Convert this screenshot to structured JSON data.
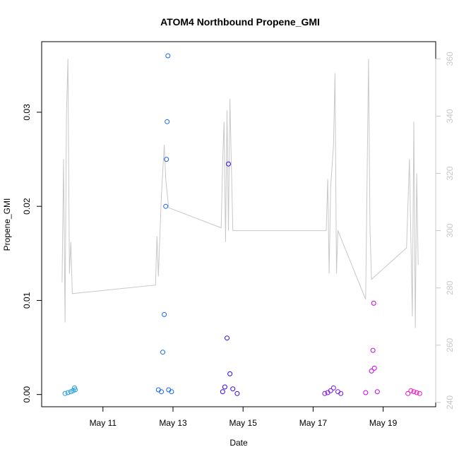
{
  "chart_data": {
    "type": "scatter",
    "title": "ATOM4 Northbound Propene_GMI",
    "xlabel": "Date",
    "ylabel": "Propene_GMI",
    "x_ticks": [
      "May 11",
      "May 13",
      "May 15",
      "May 17",
      "May 19"
    ],
    "y_ticks": [
      "0.00",
      "0.01",
      "0.02",
      "0.03"
    ],
    "y2_ticks": [
      "240",
      "260",
      "280",
      "300",
      "320",
      "340",
      "360"
    ],
    "xlim": [
      "2018-05-09 06:00",
      "2018-05-20 12:00"
    ],
    "ylim": [
      -0.0013,
      0.0375
    ],
    "y2lim": [
      238.5,
      366
    ],
    "y2_color": "#c8c8c8",
    "series": [
      {
        "color": "#1E9BE0",
        "points": [
          [
            "2018-05-09 22:00",
            0.0001
          ],
          [
            "2018-05-10 00:00",
            0.0002
          ],
          [
            "2018-05-10 02:00",
            0.0003
          ],
          [
            "2018-05-10 03:30",
            0.0004
          ],
          [
            "2018-05-10 04:30",
            0.0007
          ],
          [
            "2018-05-10 05:00",
            0.0005
          ]
        ]
      },
      {
        "color": "#1866EE",
        "points": [
          [
            "2018-05-12 14:00",
            0.0005
          ],
          [
            "2018-05-12 16:00",
            0.0003
          ],
          [
            "2018-05-12 17:00",
            0.0045
          ],
          [
            "2018-05-12 18:00",
            0.0085
          ],
          [
            "2018-05-12 19:00",
            0.02
          ],
          [
            "2018-05-12 19:30",
            0.025
          ],
          [
            "2018-05-12 20:00",
            0.029
          ],
          [
            "2018-05-12 20:30",
            0.036
          ],
          [
            "2018-05-12 21:00",
            0.0005
          ],
          [
            "2018-05-12 23:00",
            0.0003
          ]
        ]
      },
      {
        "color": "#3300EE",
        "points": [
          [
            "2018-05-14 10:00",
            0.0003
          ],
          [
            "2018-05-14 11:30",
            0.0008
          ],
          [
            "2018-05-14 13:00",
            0.006
          ],
          [
            "2018-05-14 14:00",
            0.0245
          ],
          [
            "2018-05-14 15:00",
            0.0022
          ],
          [
            "2018-05-14 17:00",
            0.0006
          ],
          [
            "2018-05-14 20:00",
            0.0001
          ]
        ]
      },
      {
        "color": "#7A10E8",
        "points": [
          [
            "2018-05-17 08:00",
            0.0001
          ],
          [
            "2018-05-17 10:00",
            0.0002
          ],
          [
            "2018-05-17 12:00",
            0.0004
          ],
          [
            "2018-05-17 14:00",
            0.0007
          ],
          [
            "2018-05-17 17:00",
            0.0003
          ],
          [
            "2018-05-17 19:00",
            0.0001
          ]
        ]
      },
      {
        "color": "#CC00EE",
        "points": [
          [
            "2018-05-18 12:00",
            0.0002
          ],
          [
            "2018-05-18 16:00",
            0.0025
          ],
          [
            "2018-05-18 17:00",
            0.0047
          ],
          [
            "2018-05-18 17:30",
            0.0097
          ],
          [
            "2018-05-18 18:00",
            0.0028
          ],
          [
            "2018-05-18 20:00",
            0.0003
          ]
        ]
      },
      {
        "color": "#EE10C0",
        "points": [
          [
            "2018-05-19 17:00",
            0.0001
          ],
          [
            "2018-05-19 19:00",
            0.0004
          ],
          [
            "2018-05-19 21:00",
            0.0003
          ],
          [
            "2018-05-19 23:00",
            0.0002
          ],
          [
            "2018-05-20 01:00",
            0.0001
          ]
        ]
      }
    ],
    "line2": {
      "color": "#c8c8c8",
      "points": [
        [
          "2018-05-09 20:00",
          282
        ],
        [
          "2018-05-09 21:00",
          325
        ],
        [
          "2018-05-09 22:00",
          268
        ],
        [
          "2018-05-09 23:00",
          340
        ],
        [
          "2018-05-10 00:00",
          360
        ],
        [
          "2018-05-10 01:00",
          285
        ],
        [
          "2018-05-10 02:00",
          296
        ],
        [
          "2018-05-10 03:00",
          278
        ],
        [
          "2018-05-12 12:00",
          281
        ],
        [
          "2018-05-12 13:00",
          298
        ],
        [
          "2018-05-12 14:00",
          284
        ],
        [
          "2018-05-12 16:00",
          312
        ],
        [
          "2018-05-12 18:00",
          330
        ],
        [
          "2018-05-12 19:00",
          318
        ],
        [
          "2018-05-12 21:00",
          308
        ],
        [
          "2018-05-14 09:00",
          301
        ],
        [
          "2018-05-14 10:00",
          324
        ],
        [
          "2018-05-14 11:00",
          338
        ],
        [
          "2018-05-14 12:00",
          296
        ],
        [
          "2018-05-14 13:00",
          342
        ],
        [
          "2018-05-14 14:00",
          300
        ],
        [
          "2018-05-14 15:00",
          346
        ],
        [
          "2018-05-14 17:00",
          300
        ],
        [
          "2018-05-17 09:00",
          300
        ],
        [
          "2018-05-17 10:00",
          318
        ],
        [
          "2018-05-17 11:00",
          285
        ],
        [
          "2018-05-17 12:00",
          315
        ],
        [
          "2018-05-17 14:00",
          330
        ],
        [
          "2018-05-17 15:00",
          355
        ],
        [
          "2018-05-17 16:00",
          285
        ],
        [
          "2018-05-17 17:00",
          300
        ],
        [
          "2018-05-18 12:00",
          276
        ],
        [
          "2018-05-18 14:00",
          360
        ],
        [
          "2018-05-18 15:00",
          300
        ],
        [
          "2018-05-18 16:00",
          283
        ],
        [
          "2018-05-19 16:00",
          294
        ],
        [
          "2018-05-19 18:00",
          325
        ],
        [
          "2018-05-19 20:00",
          270
        ],
        [
          "2018-05-19 21:00",
          338
        ],
        [
          "2018-05-19 22:00",
          266
        ],
        [
          "2018-05-19 23:00",
          320
        ],
        [
          "2018-05-20 00:00",
          288
        ]
      ]
    }
  }
}
